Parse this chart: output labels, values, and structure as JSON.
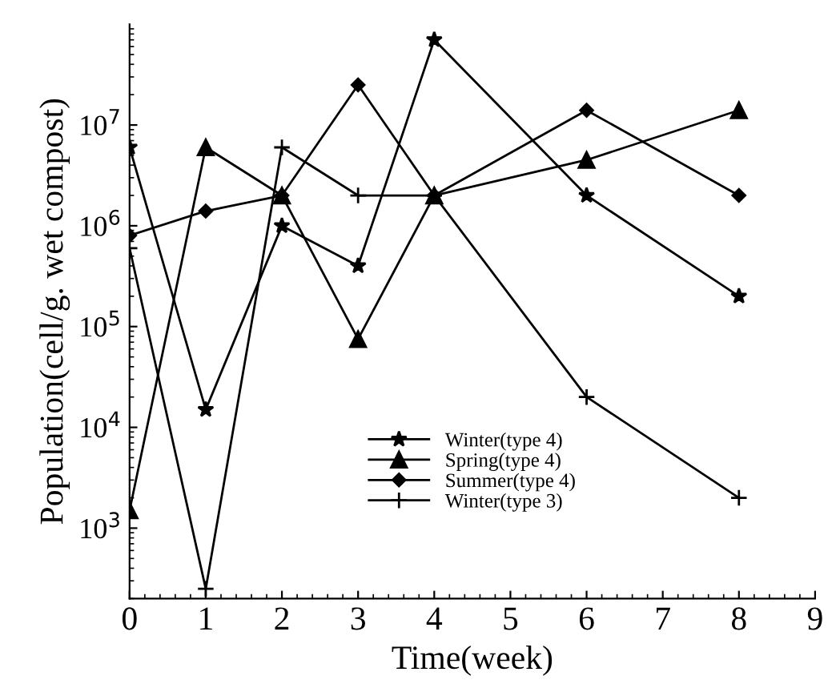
{
  "chart_data": {
    "type": "line",
    "xlabel": "Time(week)",
    "ylabel": "Population(cell/g. wet compost)",
    "x": [
      0,
      1,
      2,
      3,
      4,
      6,
      8
    ],
    "log": "y",
    "xlim": [
      0,
      9
    ],
    "xticks": [
      0,
      1,
      2,
      3,
      4,
      5,
      6,
      7,
      8,
      9
    ],
    "ylim": [
      200,
      100000000
    ],
    "yticks": [
      {
        "value": 1000,
        "label": "10$^{3}$"
      },
      {
        "value": 10000,
        "label": "10$^{4}$"
      },
      {
        "value": 100000,
        "label": "10$^{5}$"
      },
      {
        "value": 1000000,
        "label": "10$^{6}$"
      },
      {
        "value": 10000000,
        "label": "10$^{7}$"
      }
    ],
    "grid": false,
    "legend": "bottom",
    "line_style": "solid",
    "series": [
      {
        "name": "Winter(type 4)",
        "color": "#000000",
        "marker": "star",
        "values": [
          6000000,
          15000,
          1000000,
          400000,
          70000000,
          2000000,
          200000
        ]
      },
      {
        "name": "Spring(type 4)",
        "color": "#000000",
        "marker": "triangle",
        "values": [
          1500,
          6000000,
          2000000,
          75000,
          2000000,
          4500000,
          14000000
        ]
      },
      {
        "name": "Summer(type 4)",
        "color": "#000000",
        "marker": "diamond",
        "values": [
          800000,
          1400000,
          2000000,
          25000000,
          2000000,
          14000000,
          2000000
        ]
      },
      {
        "name": "Winter(type 3)",
        "color": "#000000",
        "marker": "cross",
        "values": [
          600000,
          250,
          6000000,
          2000000,
          2000000,
          20000,
          2000
        ]
      }
    ]
  }
}
